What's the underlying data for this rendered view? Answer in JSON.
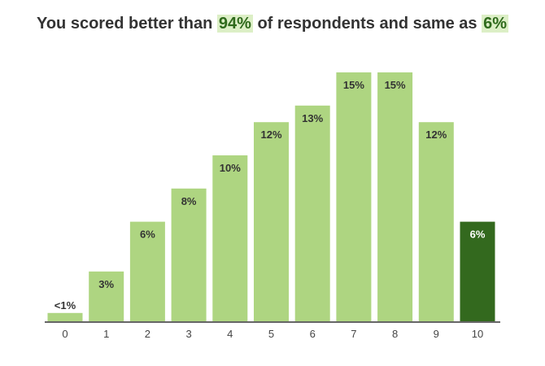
{
  "headline": {
    "prefix": "You scored better than",
    "better_pct": "94%",
    "middle": "of respondents and same as",
    "same_pct": "6%"
  },
  "colors": {
    "bar": "#aed581",
    "highlight_bar": "#33691e",
    "axis": "#333333",
    "highlight_text": "#2f6a1c",
    "highlight_bg": "#dcefc6"
  },
  "chart_data": {
    "type": "bar",
    "categories": [
      "0",
      "1",
      "2",
      "3",
      "4",
      "5",
      "6",
      "7",
      "8",
      "9",
      "10"
    ],
    "values": [
      0.5,
      3,
      6,
      8,
      10,
      12,
      13,
      15,
      15,
      12,
      6
    ],
    "data_labels": [
      "<1%",
      "3%",
      "6%",
      "8%",
      "10%",
      "12%",
      "13%",
      "15%",
      "15%",
      "12%",
      "6%"
    ],
    "highlight_index": 10,
    "ylim": [
      0,
      15
    ],
    "grid": false,
    "legend": "none",
    "title": "",
    "xlabel": "",
    "ylabel": ""
  }
}
